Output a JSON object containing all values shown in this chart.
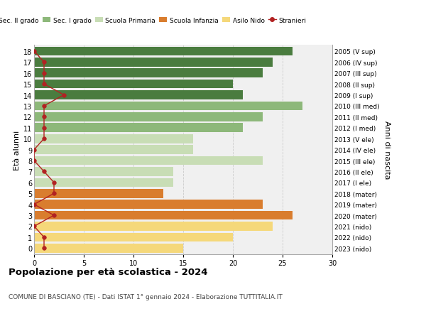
{
  "ages": [
    18,
    17,
    16,
    15,
    14,
    13,
    12,
    11,
    10,
    9,
    8,
    7,
    6,
    5,
    4,
    3,
    2,
    1,
    0
  ],
  "bar_values": [
    26,
    24,
    23,
    20,
    21,
    27,
    23,
    21,
    16,
    16,
    23,
    14,
    14,
    13,
    23,
    26,
    24,
    20,
    15
  ],
  "stranieri": [
    0,
    1,
    1,
    1,
    3,
    1,
    1,
    1,
    1,
    0,
    0,
    1,
    2,
    2,
    0,
    2,
    0,
    1,
    1
  ],
  "right_labels": [
    "2005 (V sup)",
    "2006 (IV sup)",
    "2007 (III sup)",
    "2008 (II sup)",
    "2009 (I sup)",
    "2010 (III med)",
    "2011 (II med)",
    "2012 (I med)",
    "2013 (V ele)",
    "2014 (IV ele)",
    "2015 (III ele)",
    "2016 (II ele)",
    "2017 (I ele)",
    "2018 (mater)",
    "2019 (mater)",
    "2020 (mater)",
    "2021 (nido)",
    "2022 (nido)",
    "2023 (nido)"
  ],
  "bar_colors": [
    "#4a7c3f",
    "#4a7c3f",
    "#4a7c3f",
    "#4a7c3f",
    "#4a7c3f",
    "#8db87a",
    "#8db87a",
    "#8db87a",
    "#c8ddb5",
    "#c8ddb5",
    "#c8ddb5",
    "#c8ddb5",
    "#c8ddb5",
    "#d97d2e",
    "#d97d2e",
    "#d97d2e",
    "#f5d87a",
    "#f5d87a",
    "#f5d87a"
  ],
  "legend_labels": [
    "Sec. II grado",
    "Sec. I grado",
    "Scuola Primaria",
    "Scuola Infanzia",
    "Asilo Nido",
    "Stranieri"
  ],
  "legend_colors": [
    "#4a7c3f",
    "#8db87a",
    "#c8ddb5",
    "#d97d2e",
    "#f5d87a",
    "#b22222"
  ],
  "stranieri_color": "#b22222",
  "title": "Popolazione per età scolastica - 2024",
  "subtitle": "COMUNE DI BASCIANO (TE) - Dati ISTAT 1° gennaio 2024 - Elaborazione TUTTITALIA.IT",
  "ylabel_left": "Età alunni",
  "ylabel_right": "Anni di nascita",
  "xlim": [
    0,
    30
  ],
  "xticks": [
    0,
    5,
    10,
    15,
    20,
    25,
    30
  ],
  "bg_color": "#ffffff",
  "bar_bg_color": "#f0f0f0",
  "grid_color": "#cccccc"
}
